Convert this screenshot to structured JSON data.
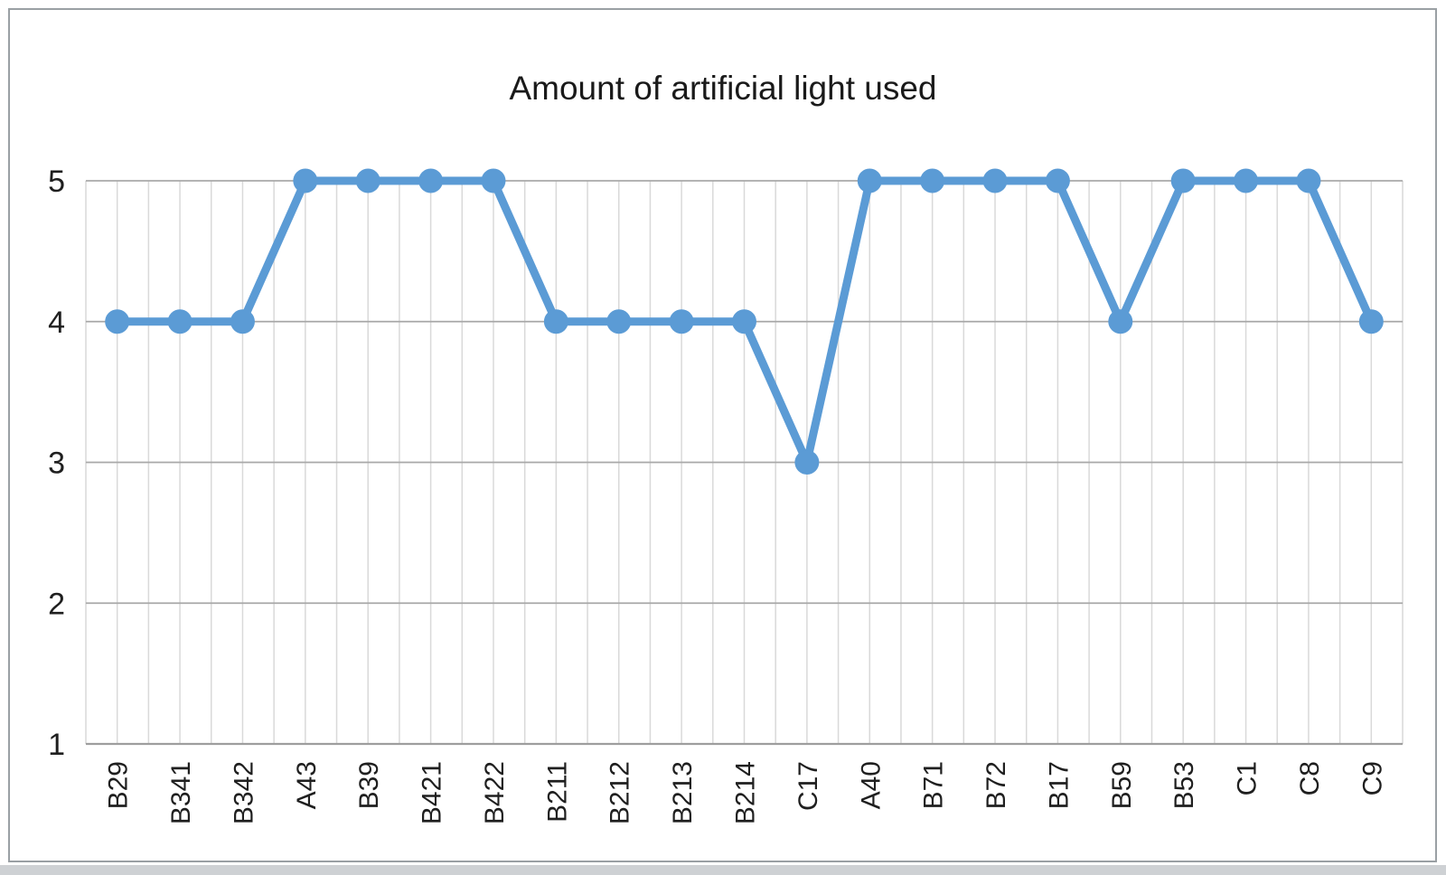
{
  "chart_data": {
    "type": "line",
    "title": "Amount of artificial light used",
    "categories": [
      "B29",
      "B341",
      "B342",
      "A43",
      "B39",
      "B421",
      "B422",
      "B211",
      "B212",
      "B213",
      "B214",
      "C17",
      "A40",
      "B71",
      "B72",
      "B17",
      "B59",
      "B53",
      "C1",
      "C8",
      "C9"
    ],
    "values": [
      4,
      4,
      4,
      5,
      5,
      5,
      5,
      4,
      4,
      4,
      4,
      3,
      5,
      5,
      5,
      5,
      4,
      5,
      5,
      5,
      4
    ],
    "xlabel": "",
    "ylabel": "",
    "ylim": [
      1,
      5
    ],
    "yticks": [
      "1",
      "2",
      "3",
      "4",
      "5"
    ],
    "grid": {
      "horizontal": true,
      "vertical": true
    },
    "legend": "none",
    "marker": "circle"
  },
  "styles": {
    "line_color": "#5B9BD5",
    "marker_color": "#5B9BD5",
    "hgrid_color": "#a9a9a9",
    "vgrid_color": "#d9d9d9",
    "axis_line_color": "#9e9e9e",
    "tick_text_color": "#1f1f1f",
    "title_color": "#1a1a1a",
    "frame_border_color": "#9aa0a4",
    "outside_strip_color": "#ced1d4"
  }
}
